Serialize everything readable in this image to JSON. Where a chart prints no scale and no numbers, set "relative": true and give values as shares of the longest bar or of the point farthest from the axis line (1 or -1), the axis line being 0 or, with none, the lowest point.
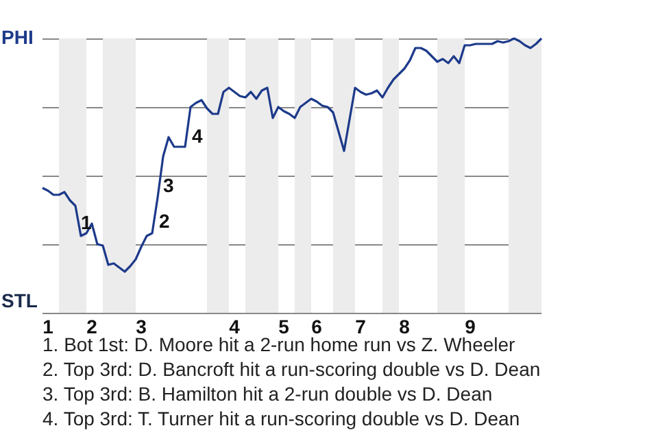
{
  "chart_data": {
    "type": "line",
    "relative": true,
    "categories": [
      null,
      "1",
      null,
      null,
      null,
      null,
      null,
      null,
      null,
      "2",
      null,
      null,
      null,
      null,
      null,
      null,
      null,
      null,
      "3",
      null,
      null,
      null,
      null,
      null,
      null,
      null,
      null,
      null,
      null,
      null,
      null,
      null,
      null,
      null,
      null,
      "4",
      null,
      null,
      null,
      null,
      null,
      null,
      null,
      null,
      "5",
      null,
      null,
      null,
      null,
      null,
      "6",
      null,
      null,
      null,
      null,
      null,
      null,
      null,
      "7",
      null,
      null,
      null,
      null,
      null,
      null,
      null,
      "8",
      null,
      null,
      null,
      null,
      null,
      null,
      null,
      null,
      null,
      null,
      null,
      "9",
      null,
      null,
      null,
      null,
      null,
      null,
      null,
      null,
      null,
      null,
      null,
      null,
      null
    ],
    "series": [
      {
        "color": "#1d3a8a",
        "values": [
          0.455,
          0.445,
          0.43,
          0.43,
          0.44,
          0.41,
          0.39,
          0.28,
          0.29,
          0.325,
          0.25,
          0.245,
          0.175,
          0.18,
          0.165,
          0.15,
          0.17,
          0.195,
          0.24,
          0.28,
          0.29,
          0.42,
          0.57,
          0.64,
          0.605,
          0.605,
          0.605,
          0.75,
          0.765,
          0.775,
          0.745,
          0.725,
          0.725,
          0.805,
          0.82,
          0.805,
          0.79,
          0.785,
          0.805,
          0.78,
          0.81,
          0.82,
          0.71,
          0.75,
          0.735,
          0.725,
          0.71,
          0.75,
          0.765,
          0.78,
          0.77,
          0.755,
          0.75,
          0.73,
          0.66,
          0.59,
          0.705,
          0.82,
          0.805,
          0.795,
          0.8,
          0.81,
          0.785,
          0.82,
          0.85,
          0.87,
          0.89,
          0.92,
          0.965,
          0.965,
          0.955,
          0.935,
          0.915,
          0.925,
          0.91,
          0.935,
          0.91,
          0.975,
          0.975,
          0.98,
          0.98,
          0.98,
          0.98,
          0.99,
          0.985,
          0.99,
          1,
          0.99,
          0.975,
          0.965,
          0.98,
          1
        ]
      }
    ],
    "grid": "y",
    "annotations": [
      "PHI",
      "STL",
      "1",
      "2",
      "3",
      "4",
      "1. Bot 1st: D. Moore hit a 2-run home run vs Z. Wheeler",
      "2. Top 3rd: D. Bancroft hit a run-scoring double vs D. Dean",
      "3. Top 3rd: B. Hamilton hit a 2-run double vs D. Dean",
      "4. Top 3rd: T. Turner hit a run-scoring double vs D. Dean"
    ]
  }
}
